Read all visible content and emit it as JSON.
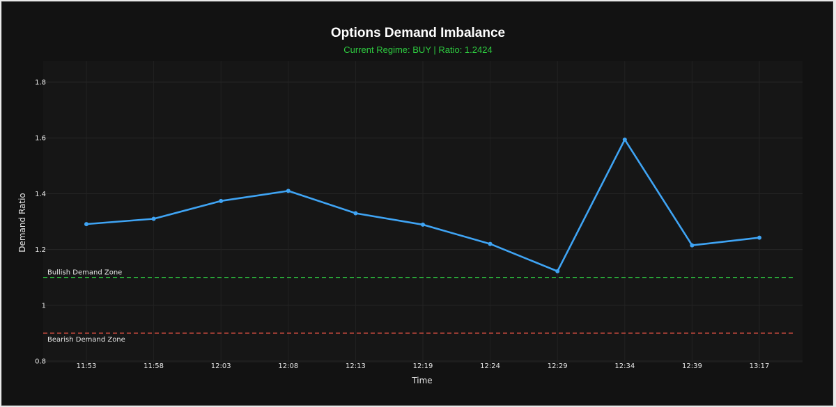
{
  "chart_data": {
    "type": "line",
    "title": "Options Demand Imbalance",
    "subtitle": "Current Regime: BUY | Ratio: 1.2424",
    "xlabel": "Time",
    "ylabel": "Demand Ratio",
    "ylim": [
      0.8,
      1.8
    ],
    "yticks": [
      0.8,
      1,
      1.2,
      1.4,
      1.6,
      1.8
    ],
    "ytick_labels": [
      "0.8",
      "1",
      "1.2",
      "1.4",
      "1.6",
      "1.8"
    ],
    "categories": [
      "11:53",
      "11:58",
      "12:03",
      "12:08",
      "12:13",
      "12:19",
      "12:24",
      "12:29",
      "12:34",
      "12:39",
      "13:17"
    ],
    "series": [
      {
        "values": [
          1.291,
          1.31,
          1.374,
          1.41,
          1.33,
          1.289,
          1.22,
          1.122,
          1.594,
          1.215,
          1.2424
        ],
        "color": "#3fa4f4"
      }
    ],
    "reference_lines": [
      {
        "label": "Bullish Demand Zone",
        "value": 1.1,
        "color": "#2ecc40",
        "style": "dashed"
      },
      {
        "label": "Bearish Demand Zone",
        "value": 0.9,
        "color": "#ff5a4a",
        "style": "dashed"
      }
    ],
    "grid": true,
    "background": "#121212",
    "plot_background": "#161616"
  }
}
